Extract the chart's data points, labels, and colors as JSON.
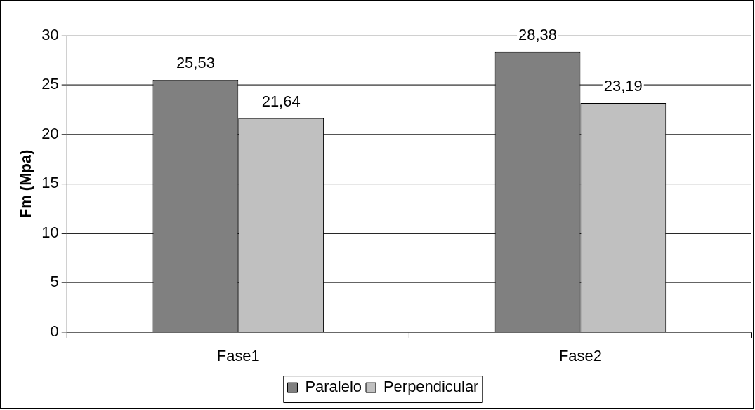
{
  "chart_data": {
    "type": "bar",
    "ylabel": "Fm (Mpa)",
    "categories": [
      "Fase1",
      "Fase2"
    ],
    "series": [
      {
        "name": "Paralelo",
        "color": "#808080",
        "values": [
          25.53,
          28.38
        ],
        "value_labels": [
          "25,53",
          "28,38"
        ]
      },
      {
        "name": "Perpendicular",
        "color": "#c0c0c0",
        "values": [
          21.64,
          23.19
        ],
        "value_labels": [
          "21,64",
          "23,19"
        ]
      }
    ],
    "ylim": [
      0,
      30
    ],
    "yticks": [
      0,
      5,
      10,
      15,
      20,
      25,
      30
    ],
    "grid": "y",
    "legend": "bottom"
  }
}
